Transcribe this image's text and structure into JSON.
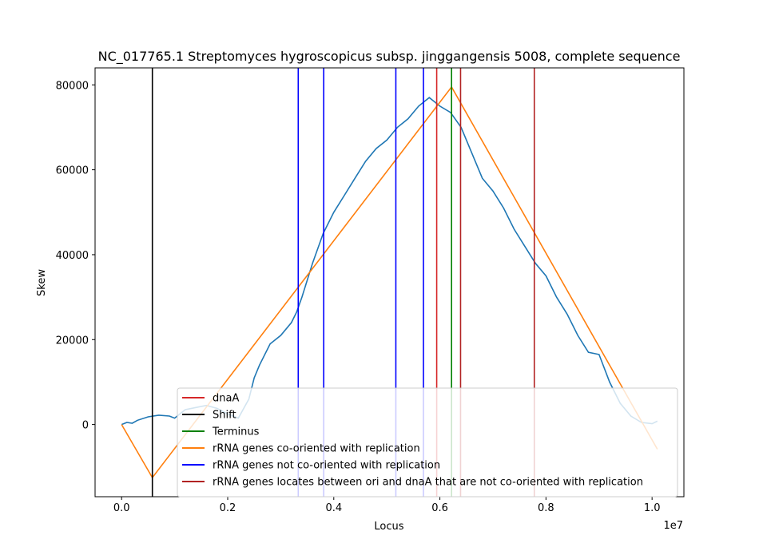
{
  "chart_data": {
    "type": "line",
    "title": "NC_017765.1 Streptomyces hygroscopicus subsp. jinggangensis 5008, complete sequence",
    "xlabel": "Locus",
    "ylabel": "Skew",
    "x_multiplier_label": "1e7",
    "xlim": [
      -0.05,
      1.06
    ],
    "ylim": [
      -17000,
      84000
    ],
    "x_ticks": [
      0.0,
      0.2,
      0.4,
      0.6,
      0.8,
      1.0
    ],
    "x_tick_labels": [
      "0.0",
      "0.2",
      "0.4",
      "0.6",
      "0.8",
      "1.0"
    ],
    "y_ticks": [
      0,
      20000,
      40000,
      60000,
      80000
    ],
    "y_tick_labels": [
      "0",
      "20000",
      "40000",
      "60000",
      "80000"
    ],
    "series": [
      {
        "name": "",
        "color": "#1f77b4",
        "x": [
          0.0,
          0.01,
          0.02,
          0.03,
          0.05,
          0.07,
          0.09,
          0.1,
          0.11,
          0.12,
          0.14,
          0.16,
          0.18,
          0.2,
          0.22,
          0.24,
          0.25,
          0.26,
          0.28,
          0.3,
          0.32,
          0.33,
          0.34,
          0.36,
          0.38,
          0.4,
          0.42,
          0.44,
          0.46,
          0.48,
          0.5,
          0.52,
          0.54,
          0.56,
          0.58,
          0.6,
          0.62,
          0.64,
          0.66,
          0.68,
          0.7,
          0.72,
          0.74,
          0.76,
          0.78,
          0.8,
          0.82,
          0.84,
          0.86,
          0.88,
          0.9,
          0.92,
          0.94,
          0.96,
          0.98,
          1.0,
          1.01
        ],
        "y": [
          0,
          500,
          300,
          1000,
          1800,
          2200,
          2000,
          1500,
          2500,
          3500,
          4000,
          4500,
          3800,
          2500,
          1500,
          6000,
          11000,
          14000,
          19000,
          21000,
          24000,
          26500,
          30000,
          38000,
          45000,
          50000,
          54000,
          58000,
          62000,
          65000,
          67000,
          70000,
          72000,
          75000,
          77000,
          75000,
          73500,
          70000,
          64000,
          58000,
          55000,
          51000,
          46000,
          42000,
          38000,
          35000,
          30000,
          26000,
          21000,
          17000,
          16500,
          10000,
          5000,
          2000,
          500,
          200,
          800
        ]
      },
      {
        "name": "rRNA genes co-oriented with replication",
        "color": "#ff7f0e",
        "x": [
          0.0,
          0.058,
          0.622,
          1.01
        ],
        "y": [
          0,
          -12500,
          79500,
          -5800
        ]
      }
    ],
    "vlines": [
      {
        "name": "dnaA",
        "x": 0.594,
        "color": "#d62728"
      },
      {
        "name": "Shift",
        "x": 0.058,
        "color": "#000000"
      },
      {
        "name": "Terminus",
        "x": 0.622,
        "color": "#008000"
      },
      {
        "name": "rRNA genes not co-oriented with replication",
        "x": 0.333,
        "color": "#0000ff"
      },
      {
        "name": "rRNA genes not co-oriented with replication",
        "x": 0.381,
        "color": "#0000ff"
      },
      {
        "name": "rRNA genes not co-oriented with replication",
        "x": 0.517,
        "color": "#0000ff"
      },
      {
        "name": "rRNA genes not co-oriented with replication",
        "x": 0.569,
        "color": "#0000ff"
      },
      {
        "name": "rRNA genes locates between ori and dnaA that are not co-oriented with replication",
        "x": 0.639,
        "color": "#b22222"
      },
      {
        "name": "rRNA genes locates between ori and dnaA that are not co-oriented with replication",
        "x": 0.778,
        "color": "#b22222"
      }
    ],
    "legend_position": "lower-right",
    "legend": [
      {
        "label": "dnaA",
        "color": "#d62728"
      },
      {
        "label": "Shift",
        "color": "#000000"
      },
      {
        "label": "Terminus",
        "color": "#008000"
      },
      {
        "label": "rRNA genes co-oriented with replication",
        "color": "#ff7f0e"
      },
      {
        "label": "rRNA genes not co-oriented with replication",
        "color": "#0000ff"
      },
      {
        "label": "rRNA genes locates between ori and dnaA that are not co-oriented with replication",
        "color": "#b22222"
      }
    ]
  }
}
